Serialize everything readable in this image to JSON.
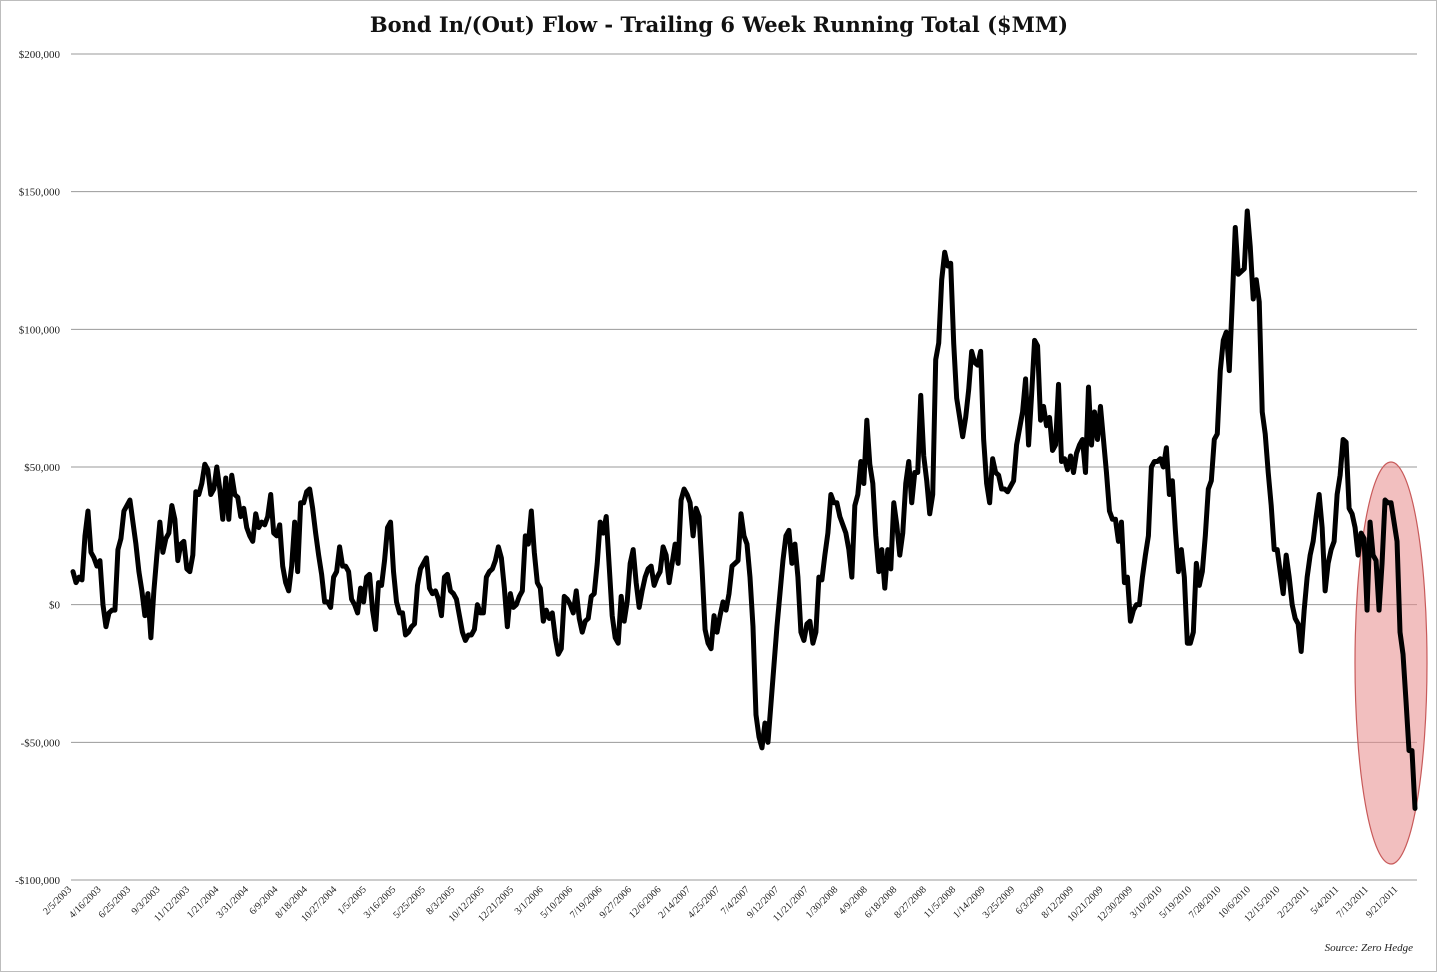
{
  "chart_data": {
    "type": "line",
    "title": "Bond In/(Out) Flow - Trailing 6 Week Running Total ($MM)",
    "xlabel": "",
    "ylabel": "",
    "ylim": [
      -100000,
      200000
    ],
    "grid": true,
    "legend": "none",
    "y_ticks": [
      {
        "value": 200000,
        "label": "$200,000"
      },
      {
        "value": 150000,
        "label": "$150,000"
      },
      {
        "value": 100000,
        "label": "$100,000"
      },
      {
        "value": 50000,
        "label": "$50,000"
      },
      {
        "value": 0,
        "label": "$0"
      },
      {
        "value": -50000,
        "label": "-$50,000"
      },
      {
        "value": -100000,
        "label": "-$100,000"
      }
    ],
    "x_ticks": [
      "2/5/2003",
      "4/16/2003",
      "6/25/2003",
      "9/3/2003",
      "11/12/2003",
      "1/21/2004",
      "3/31/2004",
      "6/9/2004",
      "8/18/2004",
      "10/27/2004",
      "1/5/2005",
      "3/16/2005",
      "5/25/2005",
      "8/3/2005",
      "10/12/2005",
      "12/21/2005",
      "3/1/2006",
      "5/10/2006",
      "7/19/2006",
      "9/27/2006",
      "12/6/2006",
      "2/14/2007",
      "4/25/2007",
      "7/4/2007",
      "9/12/2007",
      "11/21/2007",
      "1/30/2008",
      "4/9/2008",
      "6/18/2008",
      "8/27/2008",
      "11/5/2008",
      "1/14/2009",
      "3/25/2009",
      "6/3/2009",
      "8/12/2009",
      "10/21/2009",
      "12/30/2009",
      "3/10/2010",
      "5/19/2010",
      "7/28/2010",
      "10/6/2010",
      "12/15/2010",
      "2/23/2011",
      "5/4/2011",
      "7/13/2011",
      "9/21/2011"
    ],
    "series_color": "#000000",
    "series": [
      {
        "x_start": "2/5/2003",
        "x_interval_weeks": 1,
        "values": [
          12000,
          8000,
          10000,
          9000,
          25000,
          34000,
          19000,
          17000,
          14000,
          16000,
          0,
          -8000,
          -3000,
          -2000,
          -2000,
          20000,
          24000,
          34000,
          36000,
          38000,
          30000,
          22000,
          12000,
          5000,
          -4000,
          4000,
          -12000,
          5000,
          18000,
          30000,
          19000,
          24000,
          26000,
          36000,
          31000,
          16000,
          22000,
          23000,
          13000,
          12000,
          18000,
          41000,
          40000,
          44000,
          51000,
          49000,
          40000,
          42000,
          50000,
          42000,
          31000,
          46000,
          31000,
          47000,
          40000,
          39000,
          32000,
          35000,
          28000,
          25000,
          23000,
          33000,
          28000,
          30000,
          29000,
          32000,
          40000,
          26000,
          25000,
          29000,
          14000,
          8000,
          5000,
          14000,
          30000,
          12000,
          37000,
          37000,
          41000,
          42000,
          35000,
          26000,
          18000,
          11000,
          1000,
          1000,
          -1000,
          10000,
          12000,
          21000,
          14000,
          14000,
          12000,
          2000,
          0,
          -3000,
          6000,
          1000,
          10000,
          11000,
          -2000,
          -9000,
          8000,
          7000,
          16000,
          28000,
          30000,
          12000,
          1000,
          -3000,
          -3000,
          -11000,
          -10000,
          -8000,
          -7000,
          7000,
          13000,
          15000,
          17000,
          6000,
          4000,
          5000,
          2000,
          -4000,
          10000,
          11000,
          5000,
          4000,
          2000,
          -4000,
          -10000,
          -13000,
          -11000,
          -11000,
          -9000,
          0,
          -3000,
          -3000,
          10000,
          12000,
          13000,
          16000,
          21000,
          17000,
          6000,
          -8000,
          4000,
          -1000,
          0,
          3000,
          5000,
          25000,
          22000,
          34000,
          19000,
          8000,
          6000,
          -6000,
          -2000,
          -5000,
          -3000,
          -12000,
          -18000,
          -16000,
          3000,
          2000,
          0,
          -3000,
          5000,
          -5000,
          -10000,
          -6000,
          -5000,
          3000,
          4000,
          15000,
          30000,
          26000,
          32000,
          14000,
          -4000,
          -12000,
          -14000,
          3000,
          -6000,
          1000,
          15000,
          20000,
          8000,
          -1000,
          5000,
          10000,
          13000,
          14000,
          7000,
          10000,
          12000,
          21000,
          18000,
          8000,
          15000,
          22000,
          15000,
          38000,
          42000,
          40000,
          37000,
          25000,
          35000,
          32000,
          13000,
          -9000,
          -14000,
          -16000,
          -4000,
          -10000,
          -4000,
          1000,
          -2000,
          4000,
          14000,
          15000,
          16000,
          33000,
          25000,
          22000,
          10000,
          -8000,
          -40000,
          -48000,
          -52000,
          -43000,
          -50000,
          -36000,
          -22000,
          -8000,
          4000,
          16000,
          25000,
          27000,
          15000,
          22000,
          10000,
          -10000,
          -13000,
          -7000,
          -6000,
          -14000,
          -10000,
          10000,
          9000,
          18000,
          26000,
          40000,
          37000,
          37000,
          32000,
          29000,
          26000,
          20000,
          10000,
          36000,
          40000,
          52000,
          44000,
          67000,
          51000,
          44000,
          25000,
          12000,
          20000,
          6000,
          20000,
          13000,
          37000,
          29000,
          18000,
          26000,
          44000,
          52000,
          37000,
          48000,
          48000,
          76000,
          54000,
          45000,
          33000,
          40000,
          89000,
          95000,
          118000,
          128000,
          123000,
          124000,
          95000,
          75000,
          68000,
          61000,
          68000,
          78000,
          92000,
          88000,
          87000,
          92000,
          60000,
          44000,
          37000,
          53000,
          48000,
          47000,
          42000,
          42000,
          41000,
          43000,
          45000,
          58000,
          64000,
          70000,
          82000,
          58000,
          76000,
          96000,
          94000,
          67000,
          72000,
          65000,
          68000,
          56000,
          58000,
          80000,
          52000,
          53000,
          49000,
          54000,
          48000,
          55000,
          58000,
          60000,
          48000,
          79000,
          58000,
          70000,
          60000,
          72000,
          60000,
          48000,
          34000,
          31000,
          31000,
          23000,
          30000,
          8000,
          10000,
          -6000,
          -2000,
          0,
          0,
          10000,
          18000,
          25000,
          50000,
          52000,
          52000,
          53000,
          50000,
          57000,
          40000,
          45000,
          27000,
          12000,
          20000,
          10000,
          -14000,
          -14000,
          -10000,
          15000,
          7000,
          12000,
          25000,
          42000,
          45000,
          60000,
          62000,
          85000,
          96000,
          99000,
          85000,
          110000,
          137000,
          120000,
          121000,
          122000,
          143000,
          130000,
          111000,
          118000,
          110000,
          70000,
          62000,
          48000,
          36000,
          20000,
          20000,
          12000,
          4000,
          18000,
          10000,
          0,
          -5000,
          -7000,
          -17000,
          -2000,
          10000,
          18000,
          23000,
          32000,
          40000,
          28000,
          5000,
          15000,
          20000,
          23000,
          40000,
          47000,
          60000,
          59000,
          35000,
          33000,
          28000,
          18000,
          26000,
          24000,
          -2000,
          30000,
          18000,
          16000,
          -2000,
          15000,
          38000,
          37000,
          37000,
          30000,
          23000,
          -10000,
          -18000,
          -35000,
          -53000,
          -53000,
          -74000
        ]
      }
    ],
    "annotations": [
      {
        "type": "ellipse",
        "note": "highlight recent outflows",
        "color": "#e88a8a"
      }
    ]
  },
  "source_note": "Source: Zero Hedge"
}
